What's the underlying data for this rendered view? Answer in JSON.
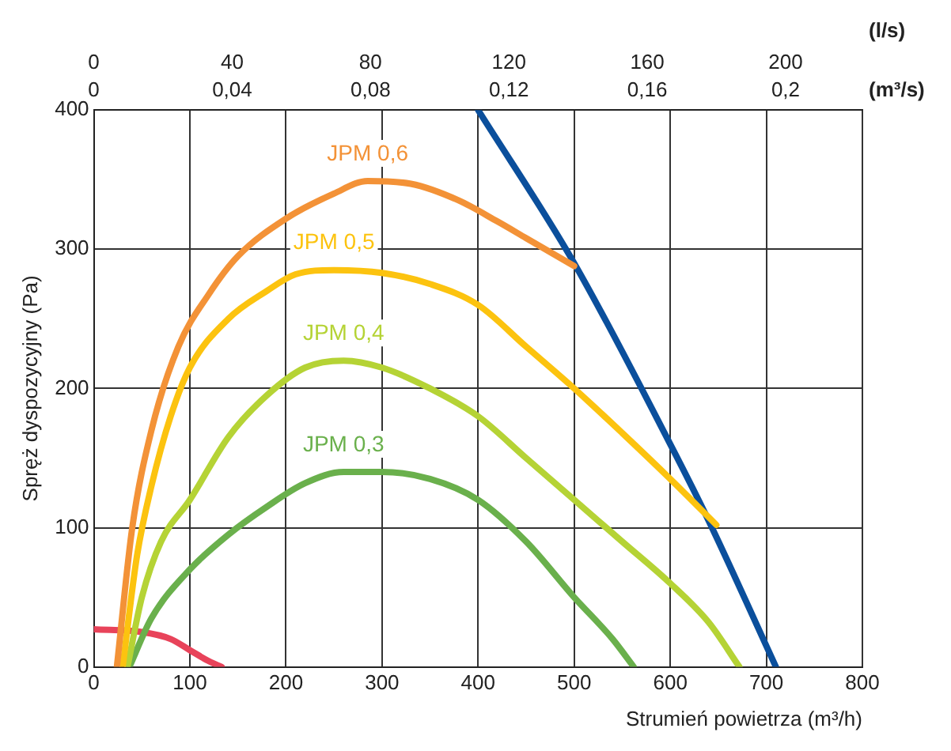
{
  "chart_data": {
    "type": "line",
    "xlabel": "Strumień powietrza (m³/h)",
    "ylabel": "Spręż dyspozycyjny (Pa)",
    "x2label": "(l/s)",
    "annotations": [
      "0",
      "0,04",
      "0,08",
      "0,12",
      "0,16",
      "0,2",
      "(m³/s)"
    ],
    "xlim": [
      0,
      800
    ],
    "xticks": [
      0,
      100,
      200,
      300,
      400,
      500,
      600,
      700,
      800
    ],
    "x2lim": [
      0,
      222.2
    ],
    "x2ticks": [
      0,
      40,
      80,
      120,
      160,
      200
    ],
    "ylim": [
      0,
      400
    ],
    "yticks": [
      0,
      100,
      200,
      300,
      400
    ],
    "grid": true,
    "legend": false,
    "marker": "none",
    "line_style": "solid",
    "series": [
      {
        "name": "JPM 0,6",
        "color": "#f39237",
        "x": [
          24,
          40,
          60,
          88,
          120,
          150,
          200,
          250,
          285,
          330,
          380,
          420,
          450,
          500
        ],
        "values": [
          0,
          100,
          170,
          230,
          268,
          295,
          322,
          340,
          349,
          347,
          335,
          320,
          308,
          288
        ]
      },
      {
        "name": "JPM 0,5",
        "color": "#fcc30f",
        "x": [
          30,
          45,
          60,
          80,
          100,
          140,
          180,
          210,
          250,
          300,
          350,
          400,
          450,
          500,
          550,
          600,
          648
        ],
        "values": [
          0,
          80,
          130,
          180,
          215,
          250,
          270,
          282,
          285,
          283,
          275,
          260,
          230,
          200,
          168,
          135,
          102
        ]
      },
      {
        "name": "JPM 0,4",
        "color": "#b5d335",
        "x": [
          35,
          50,
          70,
          100,
          140,
          180,
          220,
          260,
          300,
          350,
          400,
          450,
          500,
          550,
          600,
          640,
          672
        ],
        "values": [
          0,
          50,
          90,
          120,
          165,
          195,
          215,
          220,
          215,
          200,
          180,
          150,
          120,
          90,
          60,
          32,
          0
        ]
      },
      {
        "name": "JPM 0,3",
        "color": "#6ab04c",
        "x": [
          37,
          60,
          100,
          140,
          180,
          220,
          260,
          300,
          350,
          400,
          450,
          500,
          540,
          562
        ],
        "values": [
          0,
          35,
          70,
          95,
          115,
          132,
          140,
          140,
          135,
          120,
          90,
          50,
          20,
          0
        ]
      },
      {
        "color": "#e8435a",
        "x": [
          0,
          50,
          80,
          100,
          120,
          133
        ],
        "values": [
          27,
          25,
          20,
          12,
          4,
          0
        ]
      },
      {
        "color": "#0b4f9c",
        "x": [
          400,
          500,
          600,
          640,
          710
        ],
        "values": [
          400,
          290,
          160,
          105,
          0
        ]
      }
    ]
  }
}
